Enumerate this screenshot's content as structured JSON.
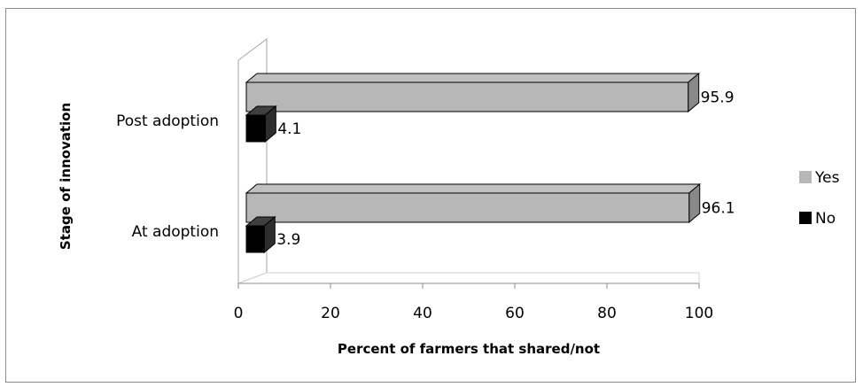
{
  "chart_data": {
    "type": "bar",
    "orientation": "horizontal",
    "style": "3d",
    "categories": [
      "Post adoption",
      "At adoption"
    ],
    "series": [
      {
        "name": "Yes",
        "color": "#b7b7b7",
        "values": [
          95.9,
          96.1
        ],
        "labels": [
          "95.9",
          "96.1"
        ]
      },
      {
        "name": "No",
        "color": "#000000",
        "values": [
          4.1,
          3.9
        ],
        "labels": [
          "4.1",
          "3.9"
        ]
      }
    ],
    "xlabel": "Percent of farmers that shared/not",
    "ylabel": "Stage of innovation",
    "xlim": [
      0,
      100
    ],
    "xticks": [
      "0",
      "20",
      "40",
      "60",
      "80",
      "100"
    ],
    "grid": false,
    "legend_position": "right"
  }
}
